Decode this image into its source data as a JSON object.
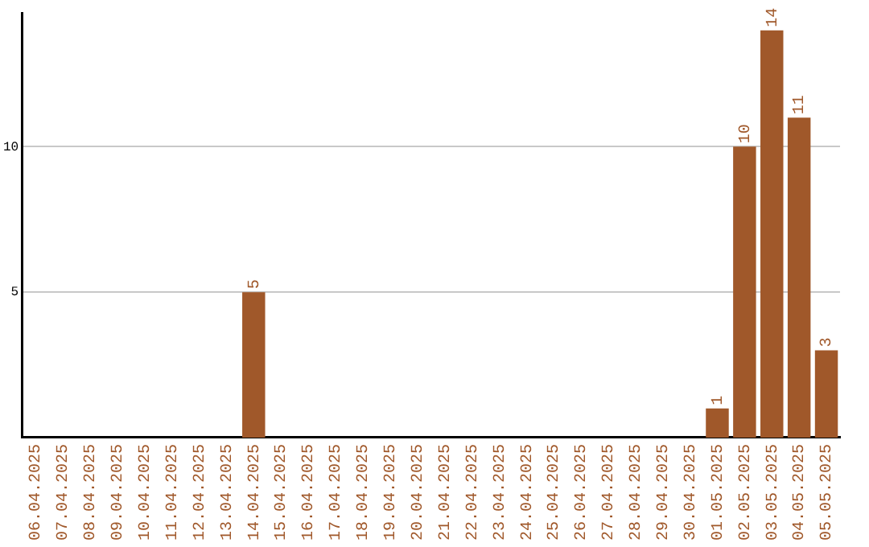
{
  "chart_data": {
    "type": "bar",
    "categories": [
      "06.04.2025",
      "07.04.2025",
      "08.04.2025",
      "09.04.2025",
      "10.04.2025",
      "11.04.2025",
      "12.04.2025",
      "13.04.2025",
      "14.04.2025",
      "15.04.2025",
      "16.04.2025",
      "17.04.2025",
      "18.04.2025",
      "19.04.2025",
      "20.04.2025",
      "21.04.2025",
      "22.04.2025",
      "23.04.2025",
      "24.04.2025",
      "25.04.2025",
      "26.04.2025",
      "27.04.2025",
      "28.04.2025",
      "29.04.2025",
      "30.04.2025",
      "01.05.2025",
      "02.05.2025",
      "03.05.2025",
      "04.05.2025",
      "05.05.2025"
    ],
    "values": [
      0,
      0,
      0,
      0,
      0,
      0,
      0,
      0,
      5,
      0,
      0,
      0,
      0,
      0,
      0,
      0,
      0,
      0,
      0,
      0,
      0,
      0,
      0,
      0,
      0,
      1,
      10,
      14,
      11,
      3
    ],
    "value_labels": [
      null,
      null,
      null,
      null,
      null,
      null,
      null,
      null,
      "5",
      null,
      null,
      null,
      null,
      null,
      null,
      null,
      null,
      null,
      null,
      null,
      null,
      null,
      null,
      null,
      null,
      "1",
      "10",
      "14",
      "11",
      "3"
    ],
    "color": "#a0582a",
    "ylim": [
      0,
      14.6
    ],
    "yticks": [
      5,
      10
    ],
    "grid": "y",
    "legend": false
  }
}
